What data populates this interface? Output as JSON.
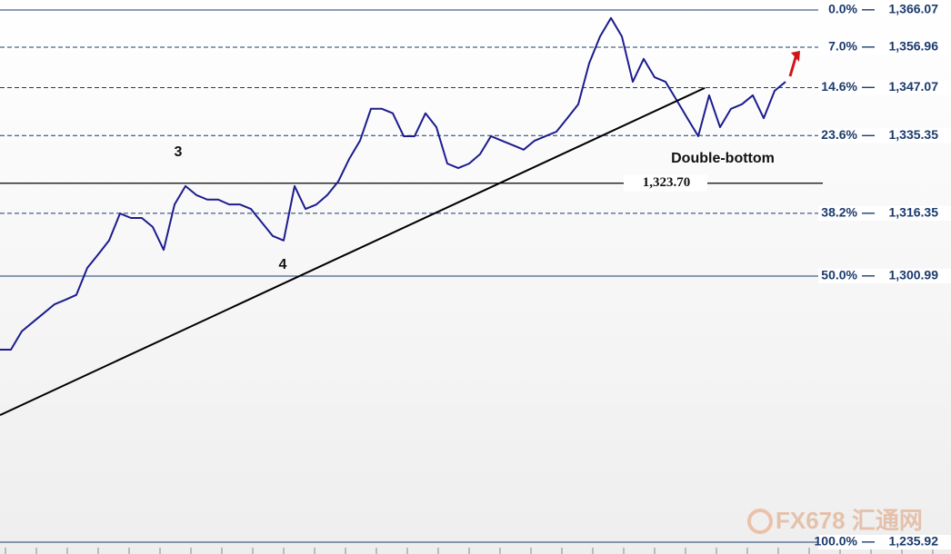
{
  "chart_data": {
    "type": "line",
    "categories": [
      null,
      null,
      null,
      null,
      null,
      null,
      null,
      null,
      null,
      null,
      null,
      null,
      null,
      null,
      null,
      null,
      null,
      null,
      null,
      null,
      null,
      null,
      null,
      null,
      null,
      null,
      null,
      null,
      null,
      null,
      null,
      null,
      null,
      null,
      null,
      null,
      null,
      null,
      null,
      null,
      null,
      null,
      null,
      null,
      null,
      null,
      null,
      null,
      null,
      null,
      null,
      null,
      null,
      null,
      null,
      null,
      null,
      null,
      null,
      null,
      null,
      null,
      null,
      null,
      null,
      null,
      null,
      null,
      null,
      null,
      null,
      null,
      null
    ],
    "series": [
      {
        "color": "#1c1c8f",
        "values": [
          1283.0,
          1283.0,
          1287.5,
          1289.7,
          1291.9,
          1294.1,
          1295.2,
          1296.4,
          1303.0,
          1306.3,
          1309.7,
          1316.3,
          1315.2,
          1315.2,
          1313.0,
          1307.4,
          1318.5,
          1323.0,
          1320.8,
          1319.7,
          1319.7,
          1318.5,
          1318.5,
          1317.4,
          1314.1,
          1310.8,
          1309.7,
          1323.0,
          1317.4,
          1318.5,
          1320.8,
          1324.1,
          1329.6,
          1334.1,
          1341.9,
          1341.9,
          1340.8,
          1335.2,
          1335.2,
          1340.8,
          1337.4,
          1328.5,
          1327.4,
          1328.5,
          1330.8,
          1335.2,
          1334.1,
          1333.0,
          1331.9,
          1334.1,
          1335.2,
          1336.3,
          1339.6,
          1343.0,
          1353.0,
          1359.6,
          1364.1,
          1359.6,
          1348.5,
          1354.1,
          1349.6,
          1348.5,
          1344.1,
          1339.6,
          1335.2,
          1345.2,
          1337.4,
          1341.9,
          1343.0,
          1345.2,
          1339.6,
          1346.3,
          1348.5
        ]
      }
    ],
    "ylim": [
      1235.92,
      1368.5
    ],
    "fib_levels": [
      {
        "pct": "0.0%",
        "value": 1366.07,
        "label": "1,366.07",
        "dashed": false
      },
      {
        "pct": "7.0%",
        "value": 1356.96,
        "label": "1,356.96",
        "dashed": true
      },
      {
        "pct": "14.6%",
        "value": 1347.07,
        "label": "1,347.07",
        "dashed": true
      },
      {
        "pct": "23.6%",
        "value": 1335.35,
        "label": "1,335.35",
        "dashed": true
      },
      {
        "pct": "38.2%",
        "value": 1316.35,
        "label": "1,316.35",
        "dashed": true
      },
      {
        "pct": "50.0%",
        "value": 1300.99,
        "label": "1,300.99",
        "dashed": false
      },
      {
        "pct": "100.0%",
        "value": 1235.92,
        "label": "1,235.92",
        "dashed": false
      }
    ],
    "fib_color": "#1b3a6e",
    "support": {
      "value": 1323.7,
      "label": "1,323.70"
    },
    "trendline": {
      "x": [
        0,
        64.6
      ],
      "y": [
        1267.0,
        1347.0
      ]
    },
    "annotations": [
      "3",
      "4",
      "Double-bottom"
    ],
    "watermark": "FX678 汇通网"
  }
}
